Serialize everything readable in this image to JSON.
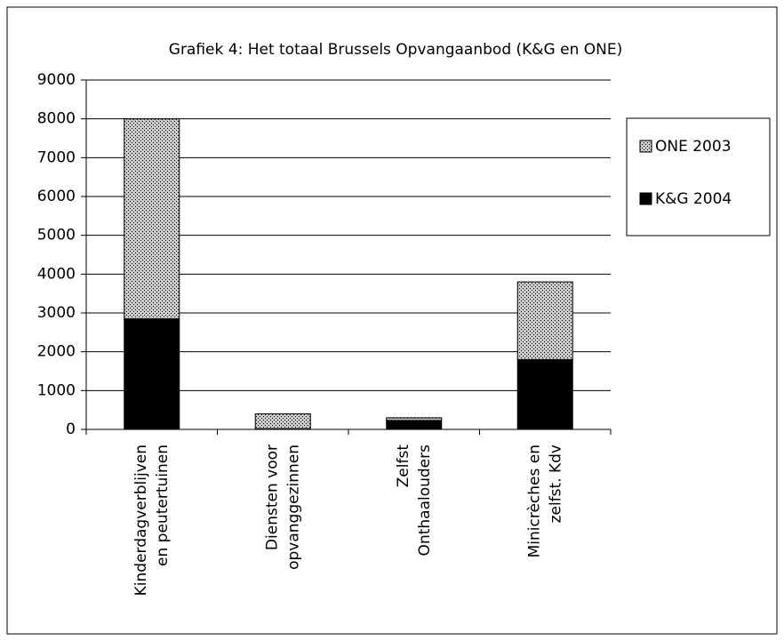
{
  "chart_data": {
    "type": "bar",
    "stacked": true,
    "title": "Grafiek 4: Het totaal Brussels Opvangaanbod (K&G en ONE)",
    "categories": [
      [
        "Kinderdagverblijven",
        "en peutertuinen"
      ],
      [
        "Diensten voor",
        "opvanggezinnen"
      ],
      [
        "Zelfst",
        "Onthaalouders"
      ],
      [
        "Minicrèches en",
        "zelfst. Kdv"
      ]
    ],
    "series": [
      {
        "name": "K&G 2004",
        "color": "#000000",
        "values": [
          2850,
          20,
          230,
          1800
        ]
      },
      {
        "name": "ONE 2003",
        "color": "#c8c8c8",
        "values": [
          5150,
          380,
          70,
          2000
        ]
      }
    ],
    "ylim": [
      0,
      9000
    ],
    "yticks": [
      0,
      1000,
      2000,
      3000,
      4000,
      5000,
      6000,
      7000,
      8000,
      9000
    ],
    "grid": true,
    "legend": "right"
  }
}
